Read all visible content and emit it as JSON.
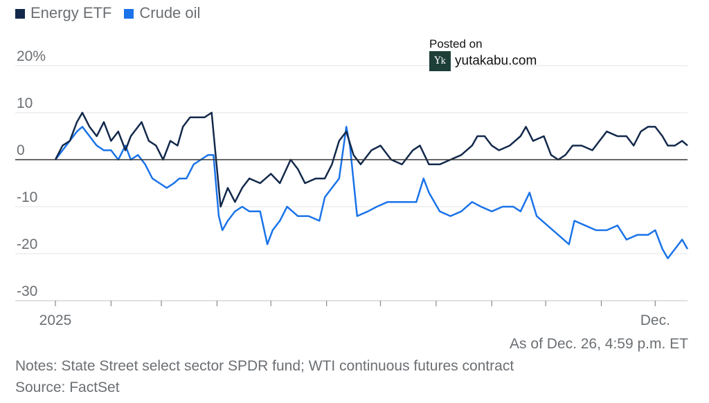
{
  "chart_data": {
    "type": "line",
    "title": "",
    "legend": [
      "Energy ETF",
      "Crude oil"
    ],
    "legend_placement": "top-left",
    "ylabel": "",
    "xlabel": "",
    "ylim": [
      -30,
      20
    ],
    "xlim_days": [
      0,
      352
    ],
    "y_ticks": [
      {
        "v": 20,
        "label": "20%"
      },
      {
        "v": 10,
        "label": "10"
      },
      {
        "v": 0,
        "label": "0"
      },
      {
        "v": -10,
        "label": "-10"
      },
      {
        "v": -20,
        "label": "-20"
      },
      {
        "v": -30,
        "label": "-30"
      }
    ],
    "x_ticks_days": [
      0,
      31,
      59,
      90,
      120,
      151,
      181,
      212,
      243,
      273,
      304,
      334
    ],
    "x_tick_labels": [
      {
        "day": 0,
        "label": "2025"
      },
      {
        "day": 334,
        "label": "Dec."
      }
    ],
    "colors": {
      "Energy ETF": "#13294b",
      "Crude oil": "#1a73e8"
    },
    "series": [
      {
        "name": "Energy ETF",
        "points": [
          [
            0,
            0
          ],
          [
            4,
            3
          ],
          [
            8,
            4
          ],
          [
            12,
            8
          ],
          [
            15,
            10
          ],
          [
            19,
            7
          ],
          [
            23,
            5
          ],
          [
            27,
            8
          ],
          [
            31,
            4
          ],
          [
            35,
            6
          ],
          [
            39,
            2
          ],
          [
            42,
            5
          ],
          [
            48,
            8
          ],
          [
            52,
            4
          ],
          [
            56,
            3
          ],
          [
            60,
            0
          ],
          [
            64,
            4
          ],
          [
            68,
            3
          ],
          [
            71,
            7
          ],
          [
            75,
            9
          ],
          [
            79,
            9
          ],
          [
            83,
            9
          ],
          [
            87,
            10
          ],
          [
            89,
            2
          ],
          [
            92,
            -10
          ],
          [
            96,
            -6
          ],
          [
            100,
            -9
          ],
          [
            104,
            -6
          ],
          [
            108,
            -4
          ],
          [
            114,
            -5
          ],
          [
            120,
            -3
          ],
          [
            125,
            -5
          ],
          [
            131,
            0
          ],
          [
            135,
            -2
          ],
          [
            139,
            -5
          ],
          [
            145,
            -4
          ],
          [
            150,
            -4
          ],
          [
            154,
            -1
          ],
          [
            158,
            4
          ],
          [
            162,
            6
          ],
          [
            166,
            1
          ],
          [
            170,
            -1
          ],
          [
            176,
            2
          ],
          [
            181,
            3
          ],
          [
            187,
            0
          ],
          [
            193,
            -1
          ],
          [
            199,
            2
          ],
          [
            203,
            3
          ],
          [
            208,
            -1
          ],
          [
            214,
            -1
          ],
          [
            220,
            0
          ],
          [
            226,
            1
          ],
          [
            232,
            3
          ],
          [
            235,
            5
          ],
          [
            239,
            5
          ],
          [
            243,
            3
          ],
          [
            247,
            2
          ],
          [
            253,
            3
          ],
          [
            259,
            5
          ],
          [
            262,
            7
          ],
          [
            266,
            4
          ],
          [
            272,
            5
          ],
          [
            276,
            1
          ],
          [
            280,
            0
          ],
          [
            284,
            1
          ],
          [
            288,
            3
          ],
          [
            293,
            3
          ],
          [
            299,
            2
          ],
          [
            303,
            4
          ],
          [
            307,
            6
          ],
          [
            313,
            5
          ],
          [
            318,
            5
          ],
          [
            322,
            3
          ],
          [
            326,
            6
          ],
          [
            330,
            7
          ],
          [
            334,
            7
          ],
          [
            338,
            5
          ],
          [
            341,
            3
          ],
          [
            345,
            3
          ],
          [
            349,
            4
          ],
          [
            352,
            3
          ]
        ]
      },
      {
        "name": "Crude oil",
        "points": [
          [
            0,
            0
          ],
          [
            4,
            2
          ],
          [
            8,
            4
          ],
          [
            12,
            6
          ],
          [
            15,
            7
          ],
          [
            19,
            5
          ],
          [
            23,
            3
          ],
          [
            27,
            2
          ],
          [
            31,
            2
          ],
          [
            35,
            0
          ],
          [
            39,
            3
          ],
          [
            42,
            0
          ],
          [
            46,
            1
          ],
          [
            50,
            -1
          ],
          [
            54,
            -4
          ],
          [
            58,
            -5
          ],
          [
            62,
            -6
          ],
          [
            66,
            -5
          ],
          [
            69,
            -4
          ],
          [
            73,
            -4
          ],
          [
            77,
            -1
          ],
          [
            81,
            0
          ],
          [
            85,
            1
          ],
          [
            88,
            1
          ],
          [
            91,
            -12
          ],
          [
            93,
            -15
          ],
          [
            96,
            -13
          ],
          [
            100,
            -11
          ],
          [
            104,
            -10
          ],
          [
            108,
            -11
          ],
          [
            114,
            -11
          ],
          [
            118,
            -18
          ],
          [
            121,
            -15
          ],
          [
            125,
            -13
          ],
          [
            129,
            -10
          ],
          [
            135,
            -12
          ],
          [
            141,
            -12
          ],
          [
            147,
            -13
          ],
          [
            150,
            -8
          ],
          [
            154,
            -6
          ],
          [
            158,
            -4
          ],
          [
            162,
            7
          ],
          [
            164,
            3
          ],
          [
            168,
            -12
          ],
          [
            174,
            -11
          ],
          [
            179,
            -10
          ],
          [
            185,
            -9
          ],
          [
            191,
            -9
          ],
          [
            197,
            -9
          ],
          [
            201,
            -9
          ],
          [
            205,
            -4
          ],
          [
            208,
            -7
          ],
          [
            214,
            -11
          ],
          [
            220,
            -12
          ],
          [
            226,
            -11
          ],
          [
            232,
            -9
          ],
          [
            237,
            -10
          ],
          [
            243,
            -11
          ],
          [
            249,
            -10
          ],
          [
            255,
            -10
          ],
          [
            259,
            -11
          ],
          [
            264,
            -7
          ],
          [
            268,
            -12
          ],
          [
            274,
            -14
          ],
          [
            280,
            -16
          ],
          [
            286,
            -18
          ],
          [
            289,
            -13
          ],
          [
            295,
            -14
          ],
          [
            301,
            -15
          ],
          [
            307,
            -15
          ],
          [
            313,
            -14
          ],
          [
            318,
            -17
          ],
          [
            324,
            -16
          ],
          [
            330,
            -16
          ],
          [
            334,
            -15
          ],
          [
            338,
            -19
          ],
          [
            341,
            -21
          ],
          [
            345,
            -19
          ],
          [
            349,
            -17
          ],
          [
            352,
            -19
          ]
        ]
      }
    ]
  },
  "watermark": {
    "line1": "Posted on",
    "site": "yutakabu.com",
    "logo": "Yk"
  },
  "footer": {
    "asof": "As of Dec. 26, 4:59 p.m. ET",
    "notes": "Notes: State Street select sector SPDR fund; WTI continuous futures contract",
    "source": "Source: FactSet"
  }
}
